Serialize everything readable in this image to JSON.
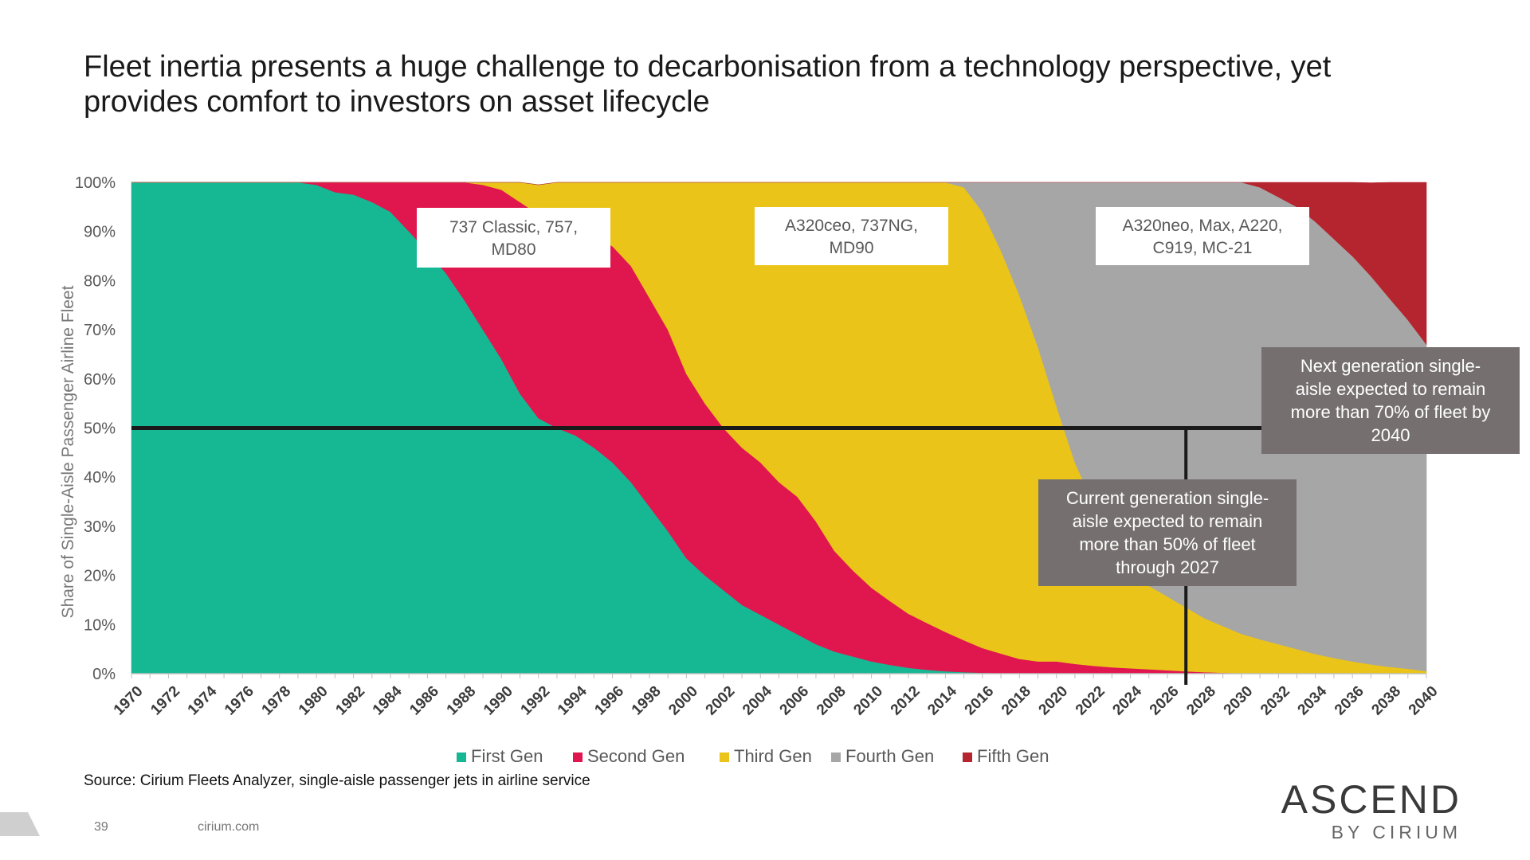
{
  "title": "Fleet inertia presents a huge challenge to decarbonisation from a technology perspective, yet provides comfort to investors on asset lifecycle",
  "source": "Source: Cirium Fleets Analyzer, single-aisle passenger jets in airline service",
  "footer": {
    "page_number": "39",
    "website": "cirium.com"
  },
  "brand": {
    "main": "ASCEND",
    "sub": "BY CIRIUM"
  },
  "chart_data": {
    "type": "area",
    "stacked": true,
    "ylabel": "Share of Single-Aisle Passenger Airline Fleet",
    "xlabel": "",
    "ylim": [
      0,
      100
    ],
    "y_ticks": [
      0,
      10,
      20,
      30,
      40,
      50,
      60,
      70,
      80,
      90,
      100
    ],
    "y_unit": "%",
    "x": [
      1970,
      1971,
      1972,
      1973,
      1974,
      1975,
      1976,
      1977,
      1978,
      1979,
      1980,
      1981,
      1982,
      1983,
      1984,
      1985,
      1986,
      1987,
      1988,
      1989,
      1990,
      1991,
      1992,
      1993,
      1994,
      1995,
      1996,
      1997,
      1998,
      1999,
      2000,
      2001,
      2002,
      2003,
      2004,
      2005,
      2006,
      2007,
      2008,
      2009,
      2010,
      2011,
      2012,
      2013,
      2014,
      2015,
      2016,
      2017,
      2018,
      2019,
      2020,
      2021,
      2022,
      2023,
      2024,
      2025,
      2026,
      2027,
      2028,
      2029,
      2030,
      2031,
      2032,
      2033,
      2034,
      2035,
      2036,
      2037,
      2038,
      2039,
      2040
    ],
    "x_ticks": [
      1970,
      1972,
      1974,
      1976,
      1978,
      1980,
      1982,
      1984,
      1986,
      1988,
      1990,
      1992,
      1994,
      1996,
      1998,
      2000,
      2002,
      2004,
      2006,
      2008,
      2010,
      2012,
      2014,
      2016,
      2018,
      2020,
      2022,
      2024,
      2026,
      2028,
      2030,
      2032,
      2034,
      2036,
      2038,
      2040
    ],
    "series": [
      {
        "name": "First Gen",
        "color": "#16b894",
        "values": [
          100,
          100,
          100,
          100,
          100,
          100,
          100,
          100,
          100,
          100,
          99.5,
          98,
          97.5,
          96,
          94,
          90,
          86,
          81.5,
          76,
          70,
          64,
          57,
          52,
          50,
          48.5,
          46,
          43,
          39,
          34,
          29,
          23.5,
          20,
          17,
          14,
          12,
          10,
          8,
          6,
          4.5,
          3.5,
          2.5,
          1.8,
          1.2,
          0.8,
          0.5,
          0.3,
          0.2,
          0.1,
          0,
          0,
          0,
          0,
          0,
          0,
          0,
          0,
          0,
          0,
          0,
          0,
          0,
          0,
          0,
          0,
          0,
          0,
          0,
          0,
          0,
          0,
          0
        ]
      },
      {
        "name": "Second Gen",
        "color": "#e0174f",
        "values": [
          0,
          0,
          0,
          0,
          0,
          0,
          0.5,
          0.5,
          0.5,
          0.5,
          0.5,
          2,
          2.5,
          4,
          6,
          10,
          14,
          18.5,
          24,
          29.5,
          34.5,
          39,
          41.5,
          41,
          41,
          43,
          44,
          44,
          42.5,
          41,
          37.5,
          35,
          33,
          32,
          31,
          29,
          28,
          25,
          20.5,
          17.5,
          15,
          13,
          11,
          9.5,
          8,
          6.5,
          5,
          4,
          3,
          2.5,
          2.5,
          2,
          1.6,
          1.3,
          1.1,
          0.9,
          0.7,
          0.5,
          0.3,
          0.2,
          0.1,
          0,
          0,
          0,
          0,
          0,
          0,
          0,
          0,
          0,
          0
        ]
      },
      {
        "name": "Third Gen",
        "color": "#eac419",
        "values": [
          0,
          0,
          0,
          0,
          0,
          0,
          0,
          0,
          0,
          0,
          0,
          0,
          0,
          0,
          0,
          0,
          0,
          0,
          0,
          0.5,
          1.5,
          4,
          6,
          9,
          10.5,
          11,
          13,
          17,
          23.5,
          30,
          39,
          45,
          50,
          54,
          57,
          61,
          64,
          69,
          75,
          79,
          82.5,
          85.2,
          87.8,
          89.7,
          91.5,
          92.2,
          88.8,
          82,
          74,
          64,
          52,
          41,
          33,
          26,
          21,
          17,
          15,
          13,
          11,
          9.5,
          8,
          7,
          6,
          5,
          4,
          3.2,
          2.5,
          1.9,
          1.4,
          1,
          0.5
        ]
      },
      {
        "name": "Fourth Gen",
        "color": "#a6a6a6",
        "values": [
          0,
          0,
          0,
          0,
          0,
          0,
          0,
          0,
          0,
          0,
          0,
          0,
          0,
          0,
          0,
          0,
          0,
          0,
          0,
          0,
          0,
          0,
          0,
          0,
          0,
          0,
          0,
          0,
          0,
          0,
          0,
          0,
          0,
          0,
          0,
          0,
          0,
          0,
          0,
          0,
          0,
          0,
          0,
          0,
          0,
          1,
          6,
          13.9,
          23,
          33.5,
          45.5,
          57,
          65.4,
          72.7,
          77.9,
          82.1,
          84.3,
          86.5,
          88.7,
          90.3,
          91.9,
          92,
          91,
          90,
          88,
          85.3,
          82.5,
          79,
          75,
          71,
          66.5
        ]
      },
      {
        "name": "Fifth Gen",
        "color": "#b5252f",
        "values": [
          0,
          0,
          0,
          0,
          0,
          0,
          0,
          0,
          0,
          0,
          0,
          0,
          0,
          0,
          0,
          0,
          0,
          0,
          0,
          0,
          0,
          0,
          0,
          0,
          0,
          0,
          0,
          0,
          0,
          0,
          0,
          0,
          0,
          0,
          0,
          0,
          0,
          0,
          0,
          0,
          0,
          0,
          0,
          0,
          0,
          0,
          0,
          0,
          0,
          0,
          0,
          0,
          0,
          0,
          0,
          0,
          0,
          0,
          0,
          0,
          0,
          1,
          3,
          5,
          8,
          11.5,
          15,
          19,
          23.6,
          28,
          33
        ]
      }
    ],
    "reference_lines": [
      {
        "orientation": "horizontal",
        "y": 50,
        "color": "#1a1a1a"
      },
      {
        "orientation": "vertical",
        "x": 2027,
        "y_from": 0,
        "y_to": 50,
        "color": "#1a1a1a"
      }
    ],
    "annotations": [
      {
        "text_lines": [
          "737 Classic, 757,",
          "MD80"
        ],
        "anchor_year": 1988.5,
        "y": 90,
        "style": "white"
      },
      {
        "text_lines": [
          "A320ceo, 737NG,",
          "MD90"
        ],
        "anchor_year": 2006.5,
        "y": 90,
        "style": "white"
      },
      {
        "text_lines": [
          "A320neo, Max, A220,",
          "C919, MC-21"
        ],
        "anchor_year": 2028.5,
        "y": 90,
        "style": "white"
      },
      {
        "text_lines": [
          "Next generation single-",
          "aisle expected to remain",
          "more than 70% of fleet by",
          "2040"
        ],
        "style": "dark"
      },
      {
        "text_lines": [
          "Current generation single-",
          "aisle expected to remain",
          "more than 50% of fleet",
          "through 2027"
        ],
        "style": "dark"
      }
    ],
    "legend": {
      "position": "bottom"
    }
  }
}
